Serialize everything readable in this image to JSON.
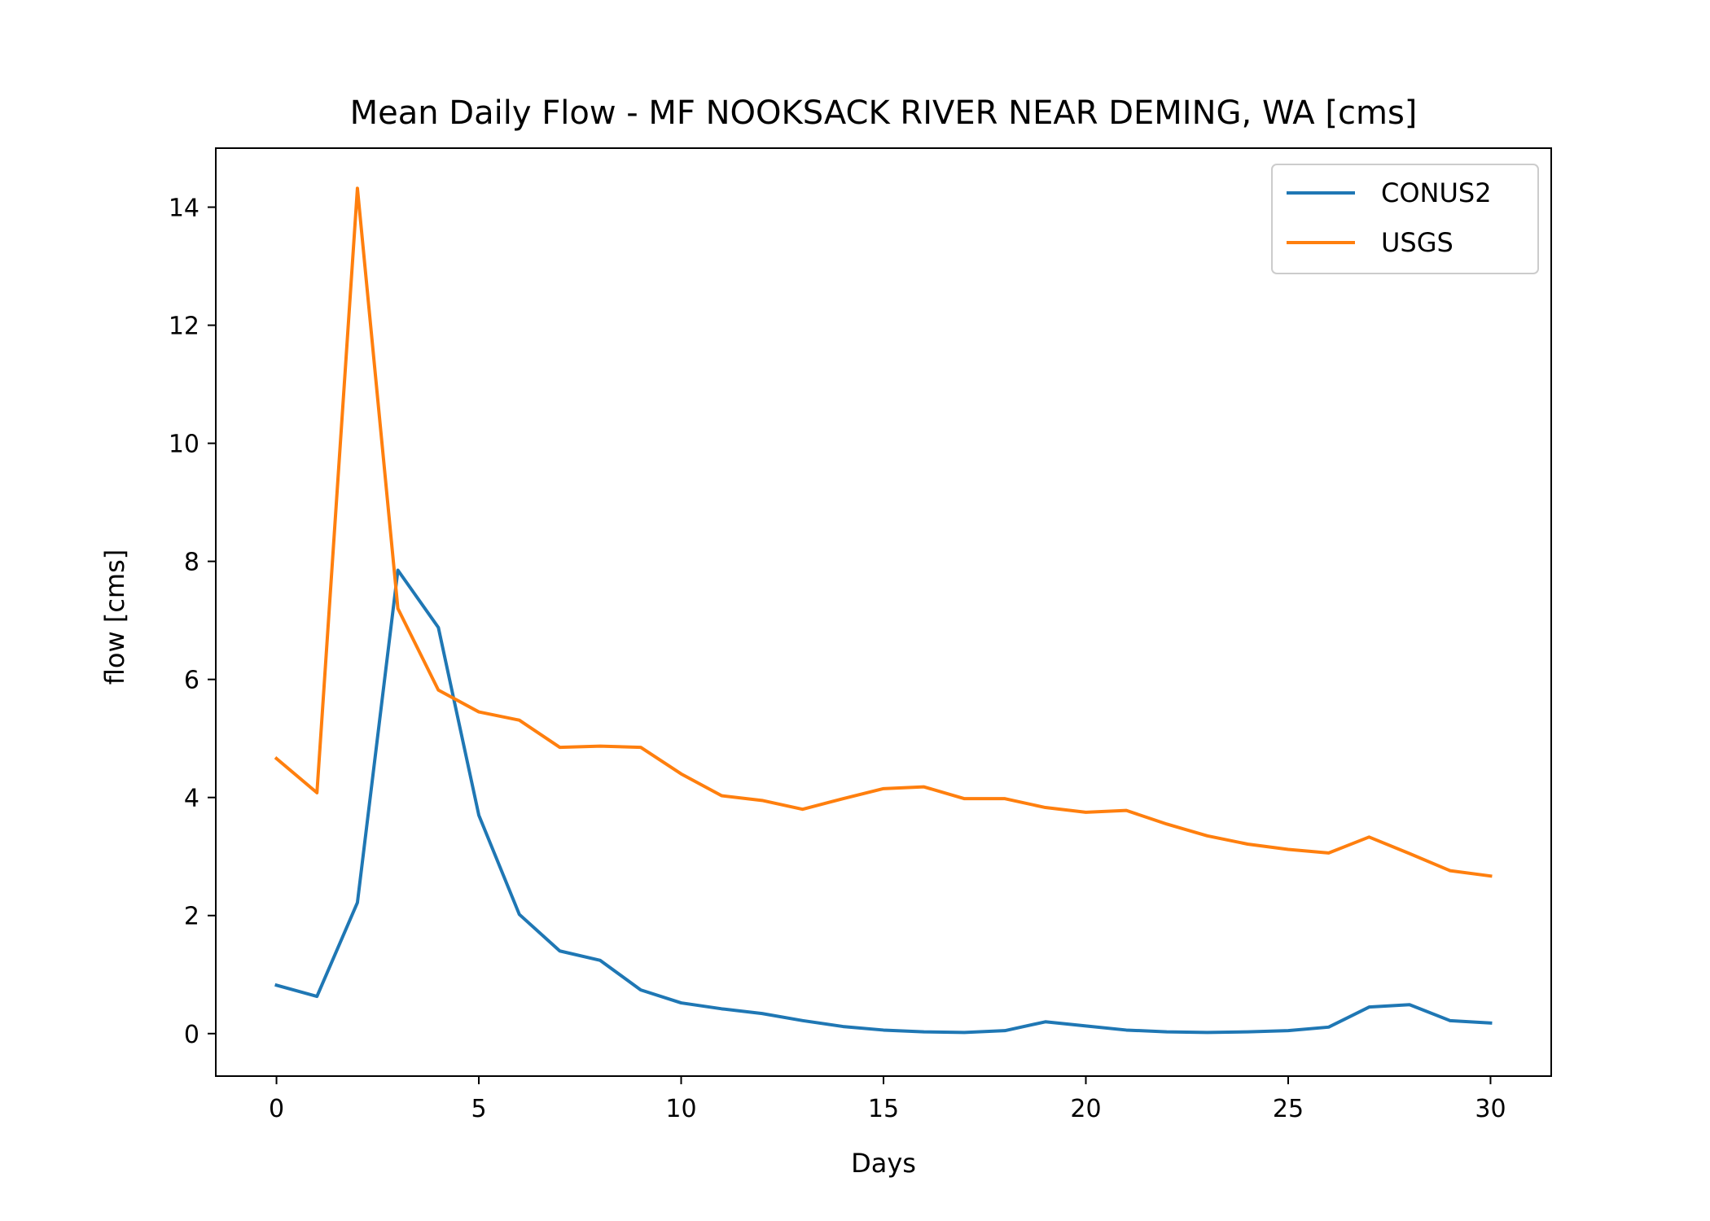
{
  "chart_data": {
    "type": "line",
    "title": "Mean Daily Flow - MF NOOKSACK RIVER NEAR DEMING, WA [cms]",
    "xlabel": "Days",
    "ylabel": "flow [cms]",
    "xlim": [
      -1.5,
      31.5
    ],
    "ylim": [
      -0.72,
      15.0
    ],
    "xticks": [
      0,
      5,
      10,
      15,
      20,
      25,
      30
    ],
    "yticks": [
      0,
      2,
      4,
      6,
      8,
      10,
      12,
      14
    ],
    "xtick_labels": [
      "0",
      "5",
      "10",
      "15",
      "20",
      "25",
      "30"
    ],
    "ytick_labels": [
      "0",
      "2",
      "4",
      "6",
      "8",
      "10",
      "12",
      "14"
    ],
    "grid": false,
    "legend_position": "top-right",
    "x": [
      0,
      1,
      2,
      3,
      4,
      5,
      6,
      7,
      8,
      9,
      10,
      11,
      12,
      13,
      14,
      15,
      16,
      17,
      18,
      19,
      20,
      21,
      22,
      23,
      24,
      25,
      26,
      27,
      28,
      29,
      30
    ],
    "series": [
      {
        "name": "CONUS2",
        "color": "#1f77b4",
        "values": [
          0.82,
          0.63,
          2.22,
          7.85,
          6.88,
          3.7,
          2.02,
          1.4,
          1.24,
          0.74,
          0.52,
          0.42,
          0.34,
          0.22,
          0.12,
          0.06,
          0.03,
          0.02,
          0.05,
          0.2,
          0.13,
          0.06,
          0.03,
          0.02,
          0.03,
          0.05,
          0.11,
          0.45,
          0.49,
          0.22,
          0.18
        ]
      },
      {
        "name": "USGS",
        "color": "#ff7f0e",
        "values": [
          4.66,
          4.08,
          14.32,
          7.2,
          5.82,
          5.45,
          5.31,
          4.85,
          4.87,
          4.85,
          4.4,
          4.03,
          3.95,
          3.8,
          3.98,
          4.15,
          4.18,
          3.98,
          3.98,
          3.83,
          3.75,
          3.78,
          3.55,
          3.35,
          3.21,
          3.12,
          3.06,
          3.33,
          3.05,
          2.76,
          2.67
        ]
      }
    ]
  }
}
